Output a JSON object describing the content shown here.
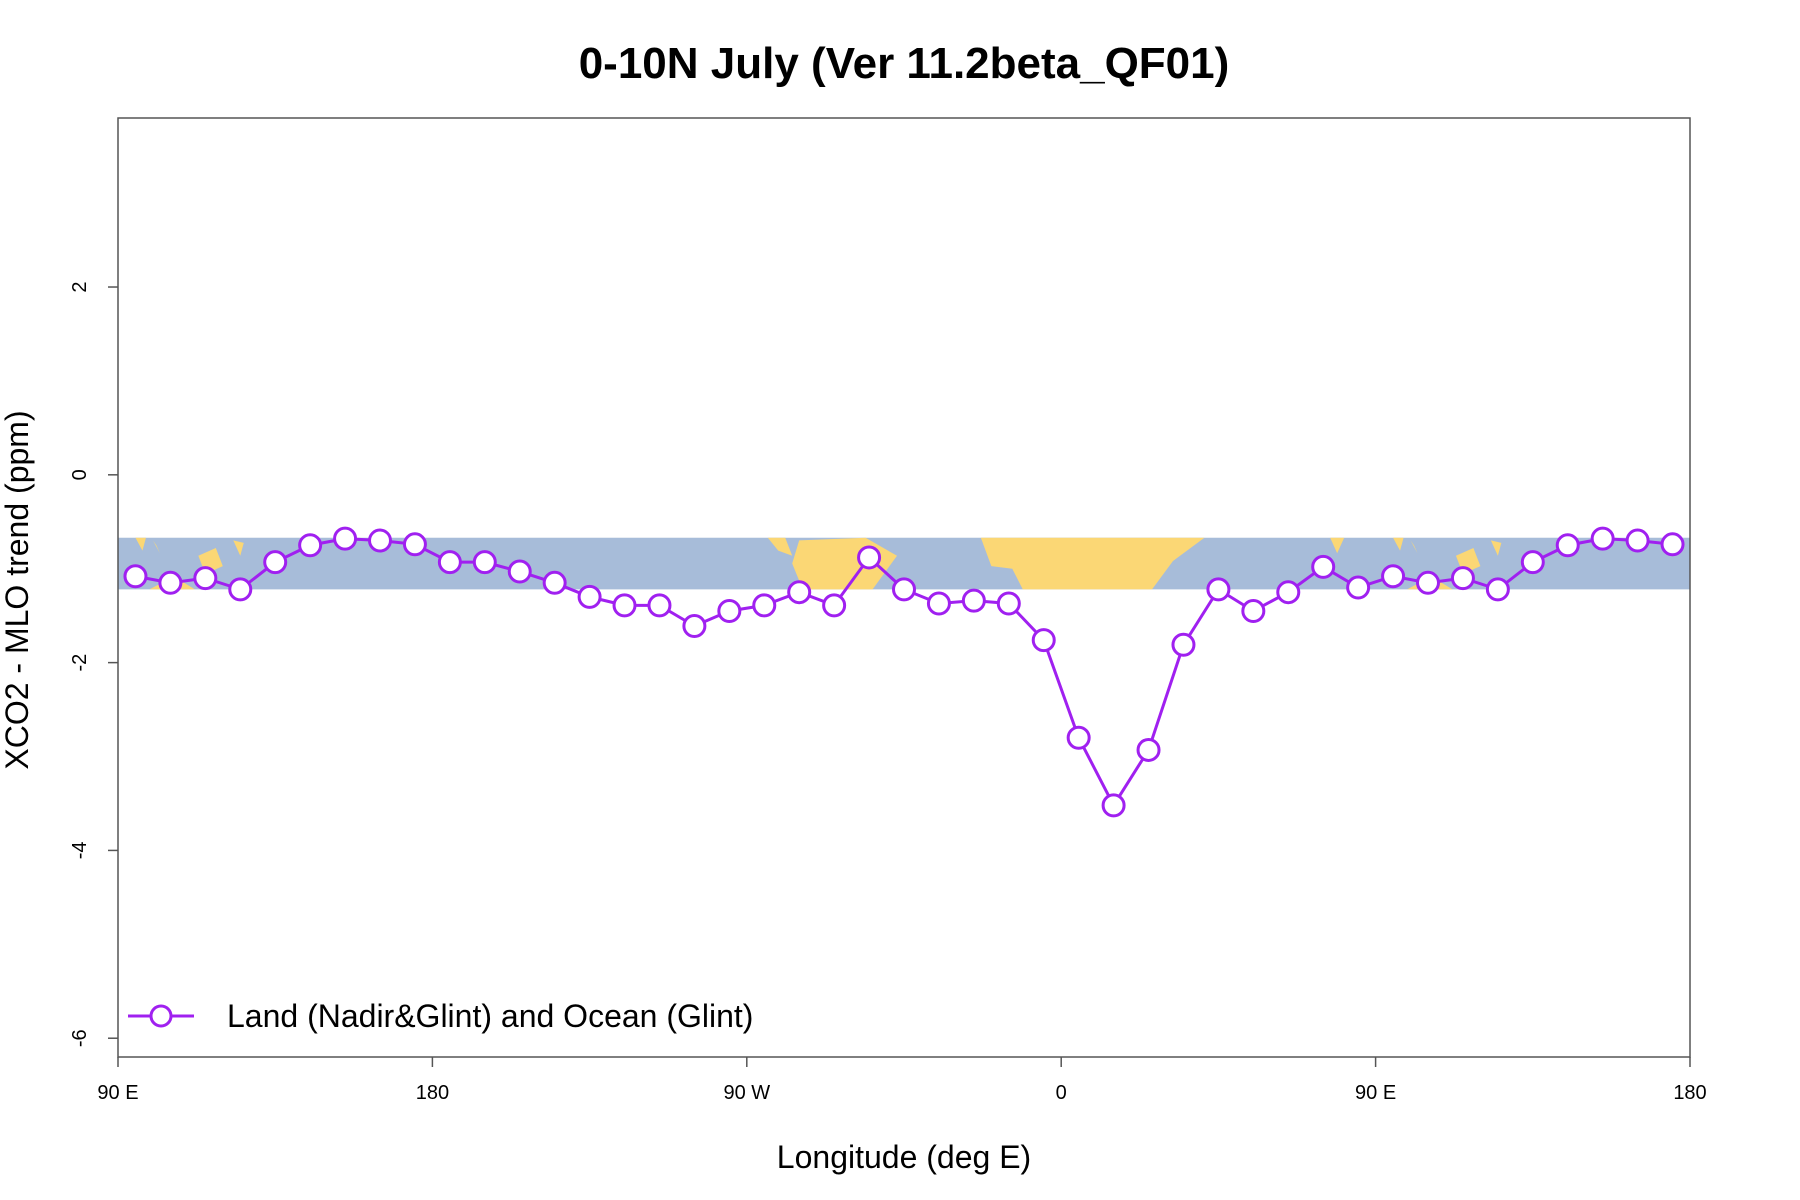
{
  "chart_data": {
    "type": "line",
    "title": "0-10N July (Ver 11.2beta_QF01)",
    "xlabel": "Longitude (deg E)",
    "ylabel": "XCO2 - MLO trend (ppm)",
    "xlim": [
      90,
      540
    ],
    "ylim": [
      -6.2,
      3.8
    ],
    "x_ticks": [
      {
        "value": 90,
        "label": "90 E"
      },
      {
        "value": 180,
        "label": "180"
      },
      {
        "value": 270,
        "label": "90 W"
      },
      {
        "value": 360,
        "label": "0"
      },
      {
        "value": 450,
        "label": "90 E"
      },
      {
        "value": 540,
        "label": "180"
      }
    ],
    "y_ticks": [
      {
        "value": -6,
        "label": "-6"
      },
      {
        "value": -4,
        "label": "-4"
      },
      {
        "value": -2,
        "label": "-2"
      },
      {
        "value": 0,
        "label": "0"
      },
      {
        "value": 2,
        "label": "2"
      }
    ],
    "grid": false,
    "legend_position": "bottom-left",
    "background_map": {
      "description": "equatorial land/ocean strip",
      "ocean_color": "#a7bcd9",
      "land_color": "#fbd775",
      "y_range": [
        -1.22,
        -0.67
      ]
    },
    "series": [
      {
        "name": "Land (Nadir&Glint) and Ocean (Glint)",
        "color": "#a020f0",
        "marker": "open-circle",
        "x": [
          95,
          105,
          115,
          125,
          135,
          145,
          155,
          165,
          175,
          185,
          195,
          205,
          215,
          225,
          235,
          245,
          255,
          265,
          275,
          285,
          295,
          305,
          315,
          325,
          335,
          345,
          355,
          365,
          375,
          385,
          395,
          405,
          415,
          425,
          435,
          445,
          455,
          465,
          475,
          485,
          495,
          505,
          515,
          525,
          535
        ],
        "y": [
          -1.08,
          -1.15,
          -1.1,
          -1.22,
          -0.93,
          -0.75,
          -0.68,
          -0.7,
          -0.74,
          -0.93,
          -0.93,
          -1.03,
          -1.15,
          -1.3,
          -1.39,
          -1.39,
          -1.61,
          -1.45,
          -1.39,
          -1.25,
          -1.39,
          -0.88,
          -1.22,
          -1.37,
          -1.34,
          -1.37,
          -1.76,
          -2.8,
          -3.52,
          -2.93,
          -1.81,
          -1.22,
          -1.45,
          -1.25,
          -0.98,
          -1.2,
          -1.08,
          -1.15,
          -1.1,
          -1.22,
          -0.93,
          -0.75,
          -0.68,
          -0.7,
          -0.74
        ]
      }
    ]
  }
}
